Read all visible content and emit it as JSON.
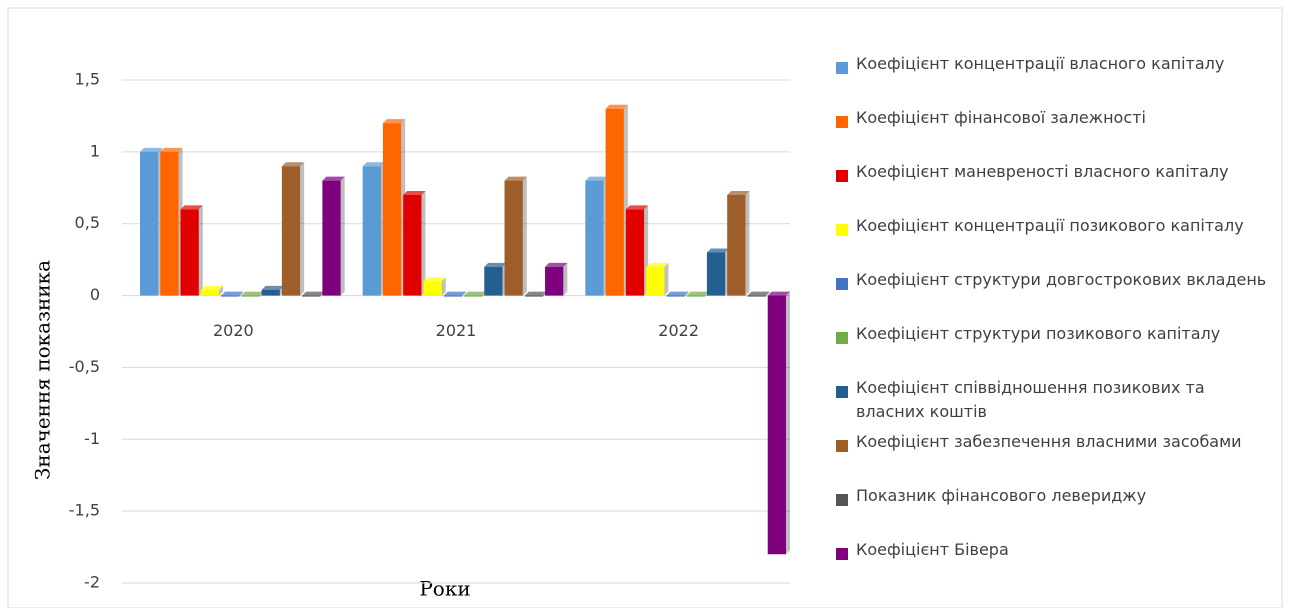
{
  "chart_data": {
    "type": "bar",
    "y_label": "Значення показника",
    "x_label": "Роки",
    "categories": [
      "2020",
      "2021",
      "2022"
    ],
    "series": [
      {
        "name": "Коефіцієнт концентрації власного капіталу",
        "color": "#5b9bd5",
        "values": [
          1.0,
          0.9,
          0.8
        ]
      },
      {
        "name": "Коефіцієнт фінансової залежності",
        "color": "#ff6600",
        "values": [
          1.0,
          1.2,
          1.3
        ]
      },
      {
        "name": "Коефіцієнт маневреності власного капіталу",
        "color": "#e00000",
        "values": [
          0.6,
          0.7,
          0.6
        ]
      },
      {
        "name": "Коефіцієнт концентрації позикового капіталу",
        "color": "#ffff00",
        "values": [
          0.04,
          0.1,
          0.2
        ]
      },
      {
        "name": "Коефіцієнт структури довгострокових вкладень",
        "color": "#4472c4",
        "values": [
          0,
          0,
          0
        ]
      },
      {
        "name": "Коефіцієнт структури позикового капіталу",
        "color": "#70ad47",
        "values": [
          0,
          0,
          0
        ]
      },
      {
        "name": "Коефіцієнт співвідношення позикових та власних коштів",
        "color": "#255e91",
        "values": [
          0.04,
          0.2,
          0.3
        ]
      },
      {
        "name": "Коефіцієнт забезпечення власними засобами",
        "color": "#9e5e2a",
        "values": [
          0.9,
          0.8,
          0.7
        ]
      },
      {
        "name": "Показник фінансового левериджу",
        "color": "#555555",
        "values": [
          0,
          0,
          0
        ]
      },
      {
        "name": "Коефіцієнт Бівера",
        "color": "#7f007f",
        "values": [
          0.8,
          0.2,
          -1.8
        ]
      }
    ],
    "ylim": [
      -2,
      1.5
    ],
    "yticks": [
      -2,
      {
        "value": -1.5,
        "label": "-1,5"
      },
      -1,
      {
        "value": -0.5,
        "label": "-0,5"
      },
      0,
      {
        "value": 0.5,
        "label": "0,5"
      },
      1,
      {
        "value": 1.5,
        "label": "1,5"
      }
    ],
    "grid": true,
    "legend": "right"
  }
}
